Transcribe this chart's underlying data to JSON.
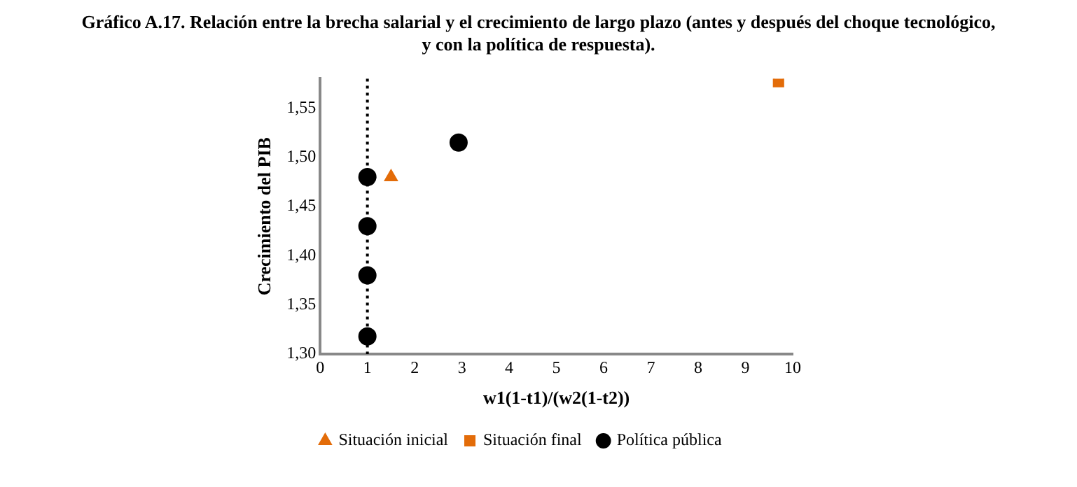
{
  "chart_data": {
    "type": "scatter",
    "title": "Gráfico A.17. Relación entre la brecha salarial y el crecimiento de largo plazo (antes y después del choque tecnológico, y con la política de respuesta).",
    "xlabel": "w1(1-t1)/(w2(1-t2))",
    "ylabel": "Crecimiento del PIB",
    "series": [
      {
        "name": "Situación inicial",
        "color": "#e36c09",
        "marker": "triangle",
        "x": [
          1.5
        ],
        "values": [
          1.48
        ]
      },
      {
        "name": "Situación final",
        "color": "#e36c09",
        "marker": "square",
        "x": [
          9.7
        ],
        "values": [
          1.577
        ]
      },
      {
        "name": "Política pública",
        "color": "#000000",
        "marker": "circle",
        "x": [
          1,
          1,
          1,
          1,
          2.93
        ],
        "values": [
          1.48,
          1.43,
          1.38,
          1.318,
          1.515
        ]
      }
    ],
    "xlim": [
      0,
      10
    ],
    "xticks": [
      0,
      1,
      2,
      3,
      4,
      5,
      6,
      7,
      8,
      9,
      10
    ],
    "ylim": [
      1.3,
      1.58
    ],
    "yticks": [
      {
        "value": 1.3,
        "label": "1,30"
      },
      {
        "value": 1.35,
        "label": "1,35"
      },
      {
        "value": 1.4,
        "label": "1,40"
      },
      {
        "value": 1.45,
        "label": "1,45"
      },
      {
        "value": 1.5,
        "label": "1,50"
      },
      {
        "value": 1.55,
        "label": "1,55"
      }
    ],
    "ref_lines": [
      {
        "axis": "x",
        "value": 1,
        "color": "#000000",
        "line_style": "dotted"
      }
    ],
    "grid": false,
    "legend": "bottom"
  }
}
